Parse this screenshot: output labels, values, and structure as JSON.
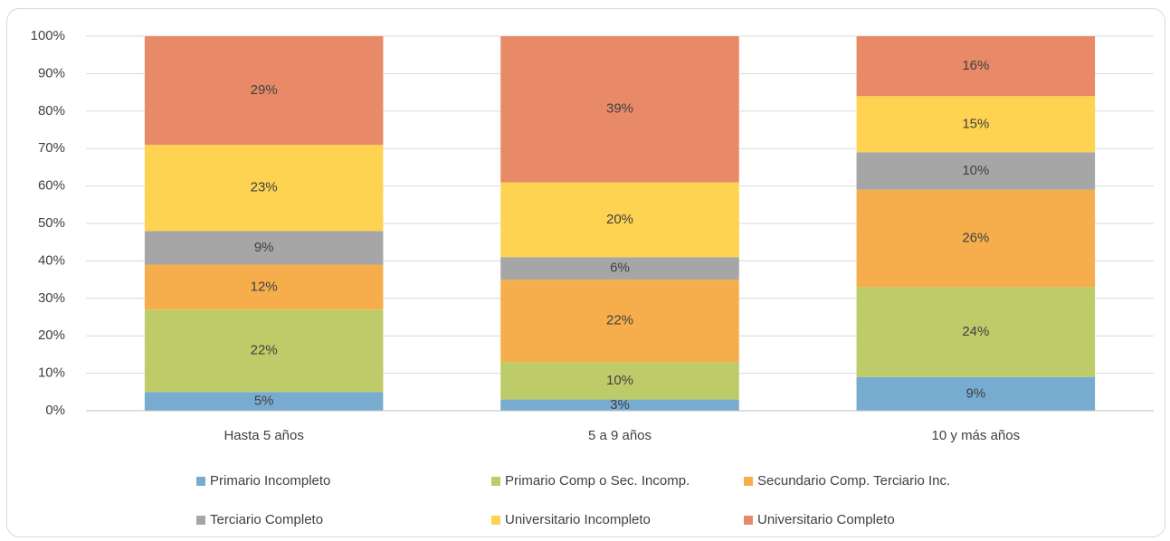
{
  "chart_data": {
    "type": "stacked_bar_100",
    "categories": [
      "Hasta 5 años",
      "5 a 9 años",
      "10 y más años"
    ],
    "series": [
      {
        "name": "Primario Incompleto",
        "color": "#78abd0",
        "values": [
          5,
          3,
          9
        ],
        "value_labels": [
          "5%",
          "3%",
          "9%"
        ]
      },
      {
        "name": "Primario Comp o Sec. Incomp.",
        "color": "#bdcb68",
        "values": [
          22,
          10,
          24
        ],
        "value_labels": [
          "22%",
          "10%",
          "24%"
        ]
      },
      {
        "name": "Secundario Comp. Terciario Inc.",
        "color": "#f6ae4c",
        "values": [
          12,
          22,
          26
        ],
        "value_labels": [
          "12%",
          "22%",
          "26%"
        ]
      },
      {
        "name": "Terciario Completo",
        "color": "#a6a6a6",
        "values": [
          9,
          6,
          10
        ],
        "value_labels": [
          "9%",
          "6%",
          "10%"
        ]
      },
      {
        "name": "Universitario Incompleto",
        "color": "#fdd351",
        "values": [
          23,
          20,
          15
        ],
        "value_labels": [
          "23%",
          "20%",
          "15%"
        ]
      },
      {
        "name": "Universitario Completo",
        "color": "#e88a68",
        "values": [
          29,
          39,
          16
        ],
        "value_labels": [
          "29%",
          "39%",
          "16%"
        ]
      }
    ],
    "ylim": [
      0,
      100
    ],
    "yticks": [
      {
        "value": 0,
        "label": "0%"
      },
      {
        "value": 10,
        "label": "10%"
      },
      {
        "value": 20,
        "label": "20%"
      },
      {
        "value": 30,
        "label": "30%"
      },
      {
        "value": 40,
        "label": "40%"
      },
      {
        "value": 50,
        "label": "50%"
      },
      {
        "value": 60,
        "label": "60%"
      },
      {
        "value": 70,
        "label": "70%"
      },
      {
        "value": 80,
        "label": "80%"
      },
      {
        "value": 90,
        "label": "90%"
      },
      {
        "value": 100,
        "label": "100%"
      }
    ],
    "grid": true,
    "legend": "bottom"
  }
}
